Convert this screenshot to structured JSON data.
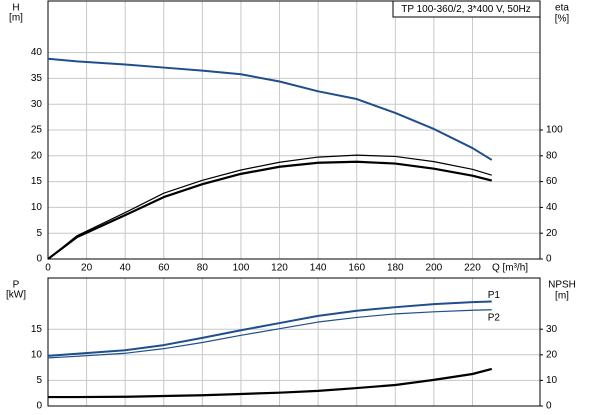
{
  "chart_data": [
    {
      "type": "line",
      "title": "TP 100-360/2, 3*400 V, 50Hz",
      "ylabel": "H",
      "yunit": "[m]",
      "y2label": "eta",
      "y2unit": "[%]",
      "xlabel": "Q [m³/h]",
      "x": [
        0,
        15,
        40,
        60,
        80,
        100,
        120,
        140,
        160,
        180,
        200,
        220,
        230
      ],
      "xlim": [
        0,
        255
      ],
      "xticks": [
        0,
        20,
        40,
        60,
        80,
        100,
        120,
        140,
        160,
        180,
        200,
        220
      ],
      "xticklabels": true,
      "ylim": [
        0,
        50
      ],
      "yticks": [
        0,
        5,
        10,
        15,
        20,
        25,
        30,
        35,
        40
      ],
      "y2lim": [
        0,
        200
      ],
      "y2ticks": [
        0,
        20,
        40,
        60,
        80,
        100
      ],
      "grid": true,
      "series": [
        {
          "color": "#1f4e8c",
          "width": 2,
          "values": [
            38.8,
            38.3,
            37.7,
            37.1,
            36.5,
            35.8,
            34.4,
            32.5,
            31.0,
            28.3,
            25.2,
            21.5,
            19.2
          ]
        },
        {
          "color": "#000000",
          "width": 1.2,
          "axis": "y2",
          "values": [
            0,
            18,
            36,
            51,
            61,
            69,
            75,
            79,
            80.5,
            79.5,
            75.5,
            69.5,
            65
          ]
        },
        {
          "color": "#000000",
          "width": 2.2,
          "axis": "y2",
          "values": [
            0,
            17,
            34,
            48,
            58,
            66,
            71.5,
            74.6,
            75.4,
            74,
            70,
            64.6,
            60.8
          ]
        }
      ]
    },
    {
      "type": "line",
      "ylabel": "P",
      "yunit": "[kW]",
      "y2label": "NPSH",
      "y2unit": "[m]",
      "x": [
        0,
        15,
        40,
        60,
        80,
        100,
        120,
        140,
        160,
        180,
        200,
        220,
        230
      ],
      "xlim": [
        0,
        255
      ],
      "xticks": [
        0,
        20,
        40,
        60,
        80,
        100,
        120,
        140,
        160,
        180,
        200,
        220
      ],
      "xticklabels": false,
      "ylim": [
        0,
        25
      ],
      "yticks": [
        0,
        5,
        10,
        15
      ],
      "y2lim": [
        0,
        50
      ],
      "y2ticks": [
        0,
        10,
        20,
        30
      ],
      "grid": true,
      "series": [
        {
          "name": "P1",
          "color": "#1f4e8c",
          "width": 2,
          "values": [
            9.8,
            10.2,
            10.9,
            11.9,
            13.3,
            14.8,
            16.2,
            17.6,
            18.6,
            19.3,
            19.9,
            20.3,
            20.4
          ]
        },
        {
          "name": "P2",
          "color": "#1f4e8c",
          "width": 1.2,
          "values": [
            9.4,
            9.7,
            10.3,
            11.2,
            12.4,
            13.8,
            15.1,
            16.4,
            17.3,
            18.0,
            18.4,
            18.7,
            18.8
          ]
        },
        {
          "color": "#000000",
          "width": 2.2,
          "axis": "y2",
          "values": [
            3.5,
            3.5,
            3.6,
            3.9,
            4.2,
            4.7,
            5.2,
            5.9,
            7.0,
            8.2,
            10.2,
            12.5,
            14.5
          ]
        }
      ]
    }
  ]
}
